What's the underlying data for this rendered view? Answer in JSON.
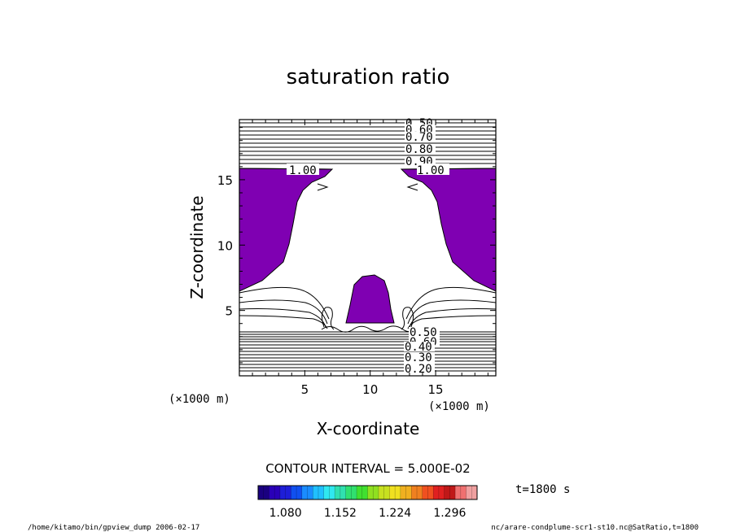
{
  "chart_data": {
    "type": "contour",
    "title": "saturation ratio",
    "xlabel": "X-coordinate",
    "ylabel": "Z-coordinate",
    "x_unit": "(×1000 m)",
    "y_unit": "(×1000 m)",
    "xlim": [
      0,
      19.6
    ],
    "ylim": [
      0,
      19.6
    ],
    "xticks": [
      5,
      10,
      15
    ],
    "yticks": [
      5,
      10,
      15
    ],
    "upper_contour_labels": [
      "0.50",
      "0.60",
      "0.70",
      "0.80",
      "0.90",
      "1.00"
    ],
    "side_contour_labels": [
      "1.00",
      "1.00"
    ],
    "lower_contour_labels": [
      "0.60",
      "0.50",
      "0.40",
      "0.30",
      "0.20"
    ],
    "shaded_region_color": "#7f00b2",
    "contour_interval_text": "CONTOUR INTERVAL = 5.000E-02",
    "colorbar": {
      "min": 1.044,
      "max": 1.332,
      "tick_labels": [
        "1.080",
        "1.152",
        "1.224",
        "1.296"
      ],
      "colors": [
        "#1a0080",
        "#2a00b8",
        "#1e1ed8",
        "#1050f0",
        "#1a8cff",
        "#20c0ff",
        "#30e8f0",
        "#30e0b0",
        "#30e070",
        "#40e030",
        "#90e020",
        "#c8e020",
        "#f0e020",
        "#f0b020",
        "#f08020",
        "#f05020",
        "#e02020",
        "#c01818",
        "#f07070",
        "#f0a0a0"
      ]
    }
  },
  "time_label": "t=1800 s",
  "footer": {
    "left": "/home/kitamo/bin/gpview_dump  2006-02-17",
    "right": "nc/arare-condplume-scr1-st10.nc@SatRatio,t=1800"
  }
}
